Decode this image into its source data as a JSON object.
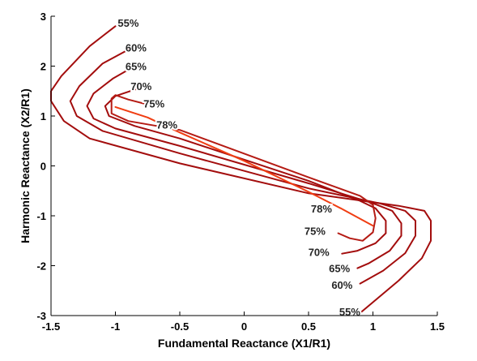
{
  "chart_data": {
    "type": "line",
    "title": "",
    "xlabel": "Fundamental Reactance (X1/R1)",
    "ylabel": "Harmonic Reactance (X2/R1)",
    "xlim": [
      -1.5,
      1.5
    ],
    "ylim": [
      -3,
      3
    ],
    "xticks": [
      "-1.5",
      "-1",
      "-0.5",
      "0",
      "0.5",
      "1",
      "1.5"
    ],
    "yticks": [
      "-3",
      "-2",
      "-1",
      "0",
      "1",
      "2",
      "3"
    ],
    "grid": false,
    "legend": "none",
    "series": [
      {
        "label_text": "55%",
        "color": "#a30d0d",
        "points": [
          [
            -1.0,
            2.8
          ],
          [
            -1.2,
            2.4
          ],
          [
            -1.42,
            1.8
          ],
          [
            -1.5,
            1.5
          ],
          [
            -1.5,
            1.3
          ],
          [
            -1.4,
            0.9
          ],
          [
            -1.2,
            0.55
          ],
          [
            -0.5,
            0.05
          ],
          [
            0.5,
            -0.55
          ],
          [
            1.2,
            -0.8
          ],
          [
            1.4,
            -0.9
          ],
          [
            1.45,
            -1.1
          ],
          [
            1.45,
            -1.5
          ],
          [
            1.38,
            -1.85
          ],
          [
            1.2,
            -2.3
          ],
          [
            0.9,
            -2.95
          ]
        ],
        "labels": [
          {
            "text": "55%",
            "at": [
              -0.9,
              2.87
            ]
          },
          {
            "text": "55%",
            "at": [
              0.82,
              -2.92
            ]
          }
        ]
      },
      {
        "label_text": "60%",
        "color": "#a30d0d",
        "points": [
          [
            -0.9,
            2.33
          ],
          [
            -1.1,
            2.05
          ],
          [
            -1.28,
            1.6
          ],
          [
            -1.35,
            1.3
          ],
          [
            -1.3,
            1.0
          ],
          [
            -1.1,
            0.7
          ],
          [
            -0.5,
            0.25
          ],
          [
            0.5,
            -0.45
          ],
          [
            1.05,
            -0.75
          ],
          [
            1.25,
            -0.9
          ],
          [
            1.33,
            -1.1
          ],
          [
            1.33,
            -1.4
          ],
          [
            1.25,
            -1.75
          ],
          [
            1.08,
            -2.1
          ],
          [
            0.9,
            -2.36
          ]
        ],
        "labels": [
          {
            "text": "60%",
            "at": [
              -0.84,
              2.37
            ]
          },
          {
            "text": "60%",
            "at": [
              0.76,
              -2.38
            ]
          }
        ]
      },
      {
        "label_text": "65%",
        "color": "#a30d0d",
        "points": [
          [
            -0.87,
            1.97
          ],
          [
            -1.02,
            1.75
          ],
          [
            -1.17,
            1.45
          ],
          [
            -1.22,
            1.2
          ],
          [
            -1.17,
            0.95
          ],
          [
            -1.0,
            0.75
          ],
          [
            -0.5,
            0.4
          ],
          [
            0.5,
            -0.35
          ],
          [
            1.0,
            -0.75
          ],
          [
            1.15,
            -0.9
          ],
          [
            1.22,
            -1.15
          ],
          [
            1.22,
            -1.4
          ],
          [
            1.13,
            -1.7
          ],
          [
            0.97,
            -1.95
          ],
          [
            0.88,
            -2.05
          ]
        ],
        "labels": [
          {
            "text": "65%",
            "at": [
              -0.84,
              2.0
            ]
          },
          {
            "text": "65%",
            "at": [
              0.74,
              -2.05
            ]
          }
        ]
      },
      {
        "label_text": "70%",
        "color": "#a30d0d",
        "points": [
          [
            -0.73,
            1.6
          ],
          [
            -0.85,
            1.53
          ],
          [
            -1.0,
            1.4
          ],
          [
            -1.08,
            1.2
          ],
          [
            -1.05,
            1.0
          ],
          [
            -0.85,
            0.8
          ],
          [
            -0.5,
            0.55
          ],
          [
            0.5,
            -0.3
          ],
          [
            0.9,
            -0.7
          ],
          [
            1.02,
            -0.85
          ],
          [
            1.1,
            -1.1
          ],
          [
            1.1,
            -1.35
          ],
          [
            1.02,
            -1.55
          ],
          [
            0.88,
            -1.7
          ],
          [
            0.76,
            -1.76
          ]
        ],
        "labels": [
          {
            "text": "70%",
            "at": [
              -0.8,
              1.6
            ]
          },
          {
            "text": "70%",
            "at": [
              0.58,
              -1.72
            ]
          }
        ]
      },
      {
        "label_text": "75%",
        "color": "#b51b14",
        "points": [
          [
            -0.78,
            1.25
          ],
          [
            -0.9,
            1.33
          ],
          [
            -1.0,
            1.42
          ],
          [
            -1.03,
            1.35
          ],
          [
            -1.03,
            1.05
          ],
          [
            -0.9,
            0.9
          ],
          [
            -0.5,
            0.72
          ],
          [
            0.5,
            -0.23
          ],
          [
            0.9,
            -0.6
          ],
          [
            1.0,
            -0.78
          ],
          [
            1.02,
            -1.05
          ],
          [
            1.0,
            -1.33
          ],
          [
            0.92,
            -1.5
          ],
          [
            0.82,
            -1.45
          ],
          [
            0.73,
            -1.35
          ]
        ],
        "labels": [
          {
            "text": "75%",
            "at": [
              -0.7,
              1.25
            ]
          },
          {
            "text": "75%",
            "at": [
              0.55,
              -1.3
            ]
          }
        ]
      },
      {
        "label_text": "78%",
        "color": "#f03d12",
        "points": [
          [
            -1.0,
            1.18
          ],
          [
            -0.75,
            0.97
          ],
          [
            -0.5,
            0.67
          ],
          [
            0.0,
            0.1
          ],
          [
            0.5,
            -0.52
          ],
          [
            0.75,
            -0.85
          ],
          [
            1.0,
            -1.2
          ]
        ],
        "labels": [
          {
            "text": "78%",
            "at": [
              -0.6,
              0.83
            ]
          },
          {
            "text": "78%",
            "at": [
              0.6,
              -0.85
            ]
          }
        ]
      }
    ]
  }
}
